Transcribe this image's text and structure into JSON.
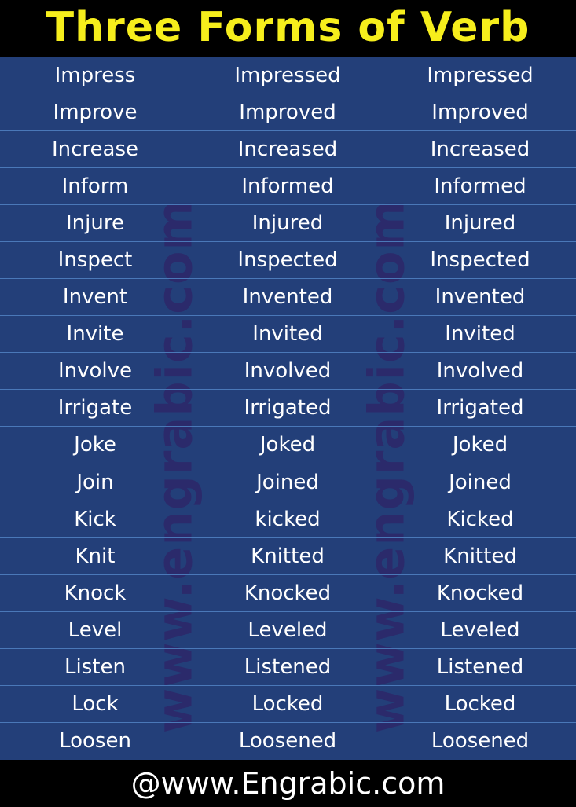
{
  "title": "Three Forms of Verb",
  "watermark": "www.engrabic.com",
  "footer": "@www.Engrabic.com",
  "colors": {
    "title": "#f6ee1c",
    "table_bg": "#233f79",
    "row_line": "#4a78b8",
    "watermark": "#2b2a6b"
  },
  "rows": [
    [
      "Impress",
      "Impressed",
      "Impressed"
    ],
    [
      "Improve",
      "Improved",
      "Improved"
    ],
    [
      "Increase",
      "Increased",
      "Increased"
    ],
    [
      "Inform",
      "Informed",
      "Informed"
    ],
    [
      "Injure",
      "Injured",
      "Injured"
    ],
    [
      "Inspect",
      "Inspected",
      "Inspected"
    ],
    [
      "Invent",
      "Invented",
      "Invented"
    ],
    [
      "Invite",
      "Invited",
      "Invited"
    ],
    [
      "Involve",
      "Involved",
      "Involved"
    ],
    [
      "Irrigate",
      "Irrigated",
      "Irrigated"
    ],
    [
      "Joke",
      "Joked",
      "Joked"
    ],
    [
      "Join",
      "Joined",
      "Joined"
    ],
    [
      "Kick",
      "kicked",
      "Kicked"
    ],
    [
      "Knit",
      "Knitted",
      "Knitted"
    ],
    [
      "Knock",
      "Knocked",
      "Knocked"
    ],
    [
      "Level",
      "Leveled",
      "Leveled"
    ],
    [
      "Listen",
      "Listened",
      "Listened"
    ],
    [
      "Lock",
      "Locked",
      "Locked"
    ],
    [
      "Loosen",
      "Loosened",
      "Loosened"
    ]
  ]
}
